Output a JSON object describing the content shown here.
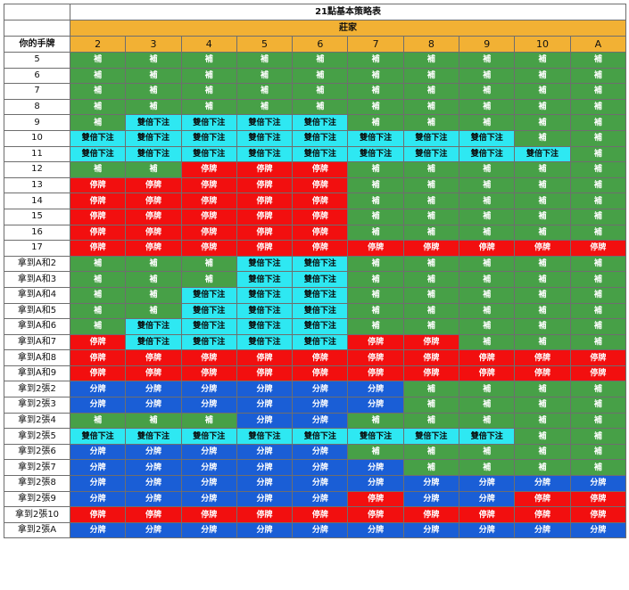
{
  "header": {
    "title": "21點基本策略表",
    "dealer_label": "莊家",
    "hand_label": "你的手牌"
  },
  "legend": {
    "H": "補",
    "S": "停牌",
    "D": "雙倍下注",
    "P": "分牌"
  },
  "colors": {
    "H": "#47a047",
    "S": "#f20f0f",
    "D": "#2ee8f2",
    "P": "#1a5ed6",
    "header": "#f2b134"
  },
  "upcards": [
    "2",
    "3",
    "4",
    "5",
    "6",
    "7",
    "8",
    "9",
    "10",
    "A"
  ],
  "rows": [
    {
      "hand": "5",
      "actions": [
        "H",
        "H",
        "H",
        "H",
        "H",
        "H",
        "H",
        "H",
        "H",
        "H"
      ]
    },
    {
      "hand": "6",
      "actions": [
        "H",
        "H",
        "H",
        "H",
        "H",
        "H",
        "H",
        "H",
        "H",
        "H"
      ]
    },
    {
      "hand": "7",
      "actions": [
        "H",
        "H",
        "H",
        "H",
        "H",
        "H",
        "H",
        "H",
        "H",
        "H"
      ]
    },
    {
      "hand": "8",
      "actions": [
        "H",
        "H",
        "H",
        "H",
        "H",
        "H",
        "H",
        "H",
        "H",
        "H"
      ]
    },
    {
      "hand": "9",
      "actions": [
        "H",
        "D",
        "D",
        "D",
        "D",
        "H",
        "H",
        "H",
        "H",
        "H"
      ]
    },
    {
      "hand": "10",
      "actions": [
        "D",
        "D",
        "D",
        "D",
        "D",
        "D",
        "D",
        "D",
        "H",
        "H"
      ]
    },
    {
      "hand": "11",
      "actions": [
        "D",
        "D",
        "D",
        "D",
        "D",
        "D",
        "D",
        "D",
        "D",
        "H"
      ]
    },
    {
      "hand": "12",
      "actions": [
        "H",
        "H",
        "S",
        "S",
        "S",
        "H",
        "H",
        "H",
        "H",
        "H"
      ]
    },
    {
      "hand": "13",
      "actions": [
        "S",
        "S",
        "S",
        "S",
        "S",
        "H",
        "H",
        "H",
        "H",
        "H"
      ]
    },
    {
      "hand": "14",
      "actions": [
        "S",
        "S",
        "S",
        "S",
        "S",
        "H",
        "H",
        "H",
        "H",
        "H"
      ]
    },
    {
      "hand": "15",
      "actions": [
        "S",
        "S",
        "S",
        "S",
        "S",
        "H",
        "H",
        "H",
        "H",
        "H"
      ]
    },
    {
      "hand": "16",
      "actions": [
        "S",
        "S",
        "S",
        "S",
        "S",
        "H",
        "H",
        "H",
        "H",
        "H"
      ]
    },
    {
      "hand": "17",
      "actions": [
        "S",
        "S",
        "S",
        "S",
        "S",
        "S",
        "S",
        "S",
        "S",
        "S"
      ]
    },
    {
      "hand": "拿到A和2",
      "actions": [
        "H",
        "H",
        "H",
        "D",
        "D",
        "H",
        "H",
        "H",
        "H",
        "H"
      ]
    },
    {
      "hand": "拿到A和3",
      "actions": [
        "H",
        "H",
        "H",
        "D",
        "D",
        "H",
        "H",
        "H",
        "H",
        "H"
      ]
    },
    {
      "hand": "拿到A和4",
      "actions": [
        "H",
        "H",
        "D",
        "D",
        "D",
        "H",
        "H",
        "H",
        "H",
        "H"
      ]
    },
    {
      "hand": "拿到A和5",
      "actions": [
        "H",
        "H",
        "D",
        "D",
        "D",
        "H",
        "H",
        "H",
        "H",
        "H"
      ]
    },
    {
      "hand": "拿到A和6",
      "actions": [
        "H",
        "D",
        "D",
        "D",
        "D",
        "H",
        "H",
        "H",
        "H",
        "H"
      ]
    },
    {
      "hand": "拿到A和7",
      "actions": [
        "S",
        "D",
        "D",
        "D",
        "D",
        "S",
        "S",
        "H",
        "H",
        "H"
      ]
    },
    {
      "hand": "拿到A和8",
      "actions": [
        "S",
        "S",
        "S",
        "S",
        "S",
        "S",
        "S",
        "S",
        "S",
        "S"
      ]
    },
    {
      "hand": "拿到A和9",
      "actions": [
        "S",
        "S",
        "S",
        "S",
        "S",
        "S",
        "S",
        "S",
        "S",
        "S"
      ]
    },
    {
      "hand": "拿到2張2",
      "actions": [
        "P",
        "P",
        "P",
        "P",
        "P",
        "P",
        "H",
        "H",
        "H",
        "H"
      ]
    },
    {
      "hand": "拿到2張3",
      "actions": [
        "P",
        "P",
        "P",
        "P",
        "P",
        "P",
        "H",
        "H",
        "H",
        "H"
      ]
    },
    {
      "hand": "拿到2張4",
      "actions": [
        "H",
        "H",
        "H",
        "P",
        "P",
        "H",
        "H",
        "H",
        "H",
        "H"
      ]
    },
    {
      "hand": "拿到2張5",
      "actions": [
        "D",
        "D",
        "D",
        "D",
        "D",
        "D",
        "D",
        "D",
        "H",
        "H"
      ]
    },
    {
      "hand": "拿到2張6",
      "actions": [
        "P",
        "P",
        "P",
        "P",
        "P",
        "H",
        "H",
        "H",
        "H",
        "H"
      ]
    },
    {
      "hand": "拿到2張7",
      "actions": [
        "P",
        "P",
        "P",
        "P",
        "P",
        "P",
        "H",
        "H",
        "H",
        "H"
      ]
    },
    {
      "hand": "拿到2張8",
      "actions": [
        "P",
        "P",
        "P",
        "P",
        "P",
        "P",
        "P",
        "P",
        "P",
        "P"
      ]
    },
    {
      "hand": "拿到2張9",
      "actions": [
        "P",
        "P",
        "P",
        "P",
        "P",
        "S",
        "P",
        "P",
        "S",
        "S"
      ]
    },
    {
      "hand": "拿到2張10",
      "actions": [
        "S",
        "S",
        "S",
        "S",
        "S",
        "S",
        "S",
        "S",
        "S",
        "S"
      ]
    },
    {
      "hand": "拿到2張A",
      "actions": [
        "P",
        "P",
        "P",
        "P",
        "P",
        "P",
        "P",
        "P",
        "P",
        "P"
      ]
    }
  ]
}
